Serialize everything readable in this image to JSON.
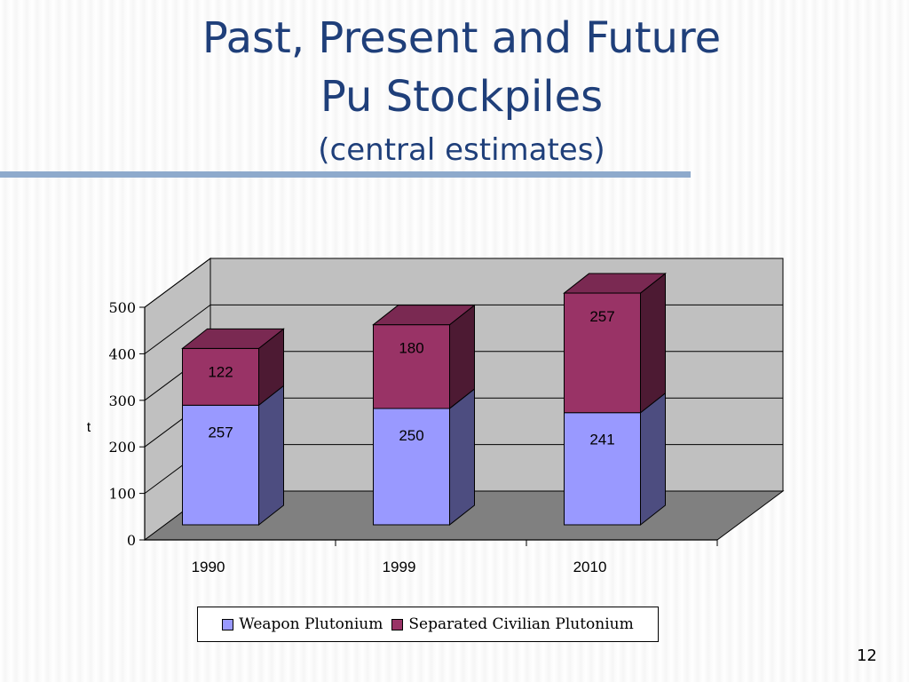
{
  "slide": {
    "title_line1": "Past, Present and Future",
    "title_line2": "Pu Stockpiles",
    "subtitle": "(central estimates)",
    "page_number": "12"
  },
  "colors": {
    "title": "#1f3f7a",
    "weapon": "#9999ff",
    "civilian": "#993366",
    "rule": "#8eaacc"
  },
  "chart_data": {
    "type": "bar",
    "stacked": true,
    "three_d": true,
    "categories": [
      "1990",
      "1999",
      "2010"
    ],
    "series": [
      {
        "name": "Weapon Plutonium",
        "values": [
          257,
          250,
          241
        ],
        "color": "#9999ff"
      },
      {
        "name": "Separated Civilian Plutonium",
        "values": [
          122,
          180,
          257
        ],
        "color": "#993366"
      }
    ],
    "ylabel": "t",
    "ylim": [
      0,
      500
    ],
    "yticks": [
      "0",
      "100",
      "200",
      "300",
      "400",
      "500"
    ],
    "grid": true,
    "legend_position": "bottom"
  }
}
